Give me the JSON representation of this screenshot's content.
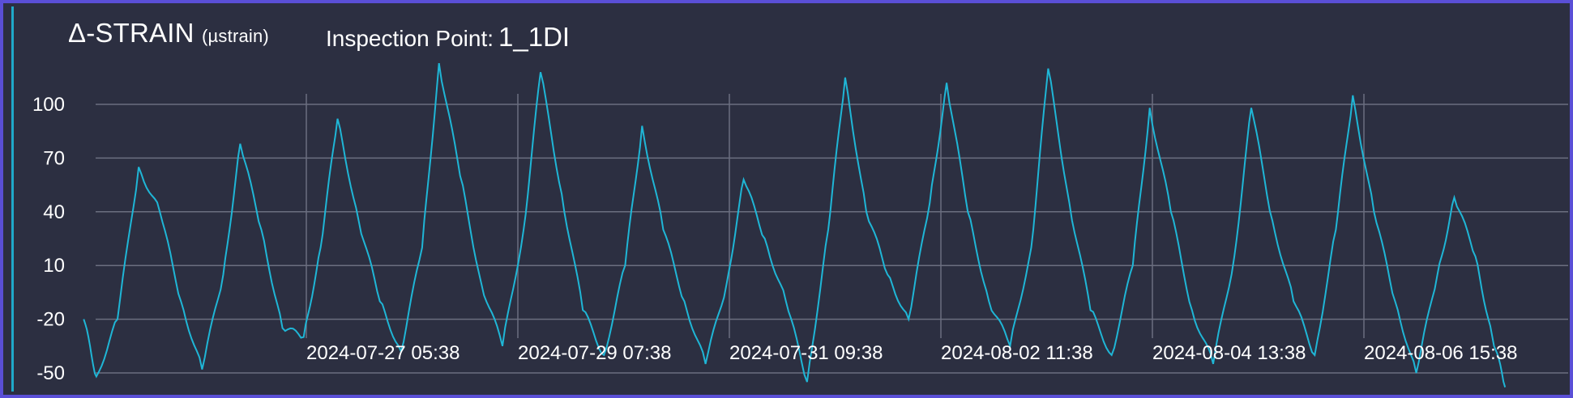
{
  "header": {
    "title": "Δ-STRAIN",
    "unit": "(µstrain)",
    "inspection_label": "Inspection Point:",
    "inspection_value": "1_1DI"
  },
  "colors": {
    "background": "#2c2f41",
    "frame": "#5a4fd6",
    "series": "#1fb6d6",
    "grid": "#6b6f80"
  },
  "chart_data": {
    "type": "line",
    "title": "Δ-STRAIN (µstrain)",
    "xlabel": "",
    "ylabel": "",
    "ylim": [
      -56,
      124
    ],
    "yticks": [
      100,
      70,
      40,
      10,
      -20,
      -50
    ],
    "grid": "on",
    "x_tick_labels": [
      "2024-07-27 05:38",
      "2024-07-29 07:38",
      "2024-07-31 09:38",
      "2024-08-02 11:38",
      "2024-08-04 13:38",
      "2024-08-06 15:38"
    ],
    "series": [
      {
        "points": [
          [
            "2024-07-25 01:00",
            -20
          ],
          [
            "2024-07-25 04:00",
            -52
          ],
          [
            "2024-07-25 09:00",
            -20
          ],
          [
            "2024-07-25 14:00",
            65
          ],
          [
            "2024-07-25 19:00",
            40
          ],
          [
            "2024-07-26 00:00",
            -10
          ],
          [
            "2024-07-26 05:00",
            -48
          ],
          [
            "2024-07-26 10:00",
            5
          ],
          [
            "2024-07-26 14:00",
            78
          ],
          [
            "2024-07-26 19:00",
            30
          ],
          [
            "2024-07-27 00:00",
            -25
          ],
          [
            "2024-07-27 05:00",
            -30
          ],
          [
            "2024-07-27 09:00",
            20
          ],
          [
            "2024-07-27 13:00",
            92
          ],
          [
            "2024-07-27 18:00",
            35
          ],
          [
            "2024-07-27 23:00",
            -10
          ],
          [
            "2024-07-28 04:00",
            -38
          ],
          [
            "2024-07-28 09:00",
            20
          ],
          [
            "2024-07-28 13:00",
            123
          ],
          [
            "2024-07-28 18:00",
            60
          ],
          [
            "2024-07-28 23:00",
            0
          ],
          [
            "2024-07-29 04:00",
            -35
          ],
          [
            "2024-07-29 09:00",
            30
          ],
          [
            "2024-07-29 13:00",
            118
          ],
          [
            "2024-07-29 18:00",
            50
          ],
          [
            "2024-07-29 23:00",
            -15
          ],
          [
            "2024-07-30 04:00",
            -40
          ],
          [
            "2024-07-30 09:00",
            10
          ],
          [
            "2024-07-30 13:00",
            88
          ],
          [
            "2024-07-30 18:00",
            30
          ],
          [
            "2024-07-30 23:00",
            -10
          ],
          [
            "2024-07-31 04:00",
            -45
          ],
          [
            "2024-07-31 09:00",
            0
          ],
          [
            "2024-07-31 13:00",
            58
          ],
          [
            "2024-07-31 18:00",
            25
          ],
          [
            "2024-07-31 23:00",
            -10
          ],
          [
            "2024-08-01 04:00",
            -55
          ],
          [
            "2024-08-01 09:00",
            30
          ],
          [
            "2024-08-01 13:00",
            115
          ],
          [
            "2024-08-01 18:00",
            40
          ],
          [
            "2024-08-01 23:00",
            5
          ],
          [
            "2024-08-02 04:00",
            -20
          ],
          [
            "2024-08-02 09:00",
            45
          ],
          [
            "2024-08-02 13:00",
            112
          ],
          [
            "2024-08-02 18:00",
            40
          ],
          [
            "2024-08-02 23:00",
            -10
          ],
          [
            "2024-08-03 04:00",
            -35
          ],
          [
            "2024-08-03 09:00",
            20
          ],
          [
            "2024-08-03 13:00",
            120
          ],
          [
            "2024-08-03 18:00",
            45
          ],
          [
            "2024-08-03 23:00",
            -15
          ],
          [
            "2024-08-04 04:00",
            -40
          ],
          [
            "2024-08-04 09:00",
            10
          ],
          [
            "2024-08-04 13:00",
            98
          ],
          [
            "2024-08-04 18:00",
            40
          ],
          [
            "2024-08-04 23:00",
            -15
          ],
          [
            "2024-08-05 04:00",
            -45
          ],
          [
            "2024-08-05 09:00",
            15
          ],
          [
            "2024-08-05 13:00",
            98
          ],
          [
            "2024-08-05 18:00",
            35
          ],
          [
            "2024-08-05 23:00",
            -10
          ],
          [
            "2024-08-06 04:00",
            -40
          ],
          [
            "2024-08-06 09:00",
            30
          ],
          [
            "2024-08-06 13:00",
            105
          ],
          [
            "2024-08-06 18:00",
            40
          ],
          [
            "2024-08-06 23:00",
            -10
          ],
          [
            "2024-08-07 04:00",
            -50
          ],
          [
            "2024-08-07 09:00",
            5
          ],
          [
            "2024-08-07 13:00",
            48
          ],
          [
            "2024-08-07 18:00",
            15
          ],
          [
            "2024-08-07 22:00",
            -30
          ],
          [
            "2024-08-08 01:00",
            -58
          ]
        ]
      }
    ]
  }
}
